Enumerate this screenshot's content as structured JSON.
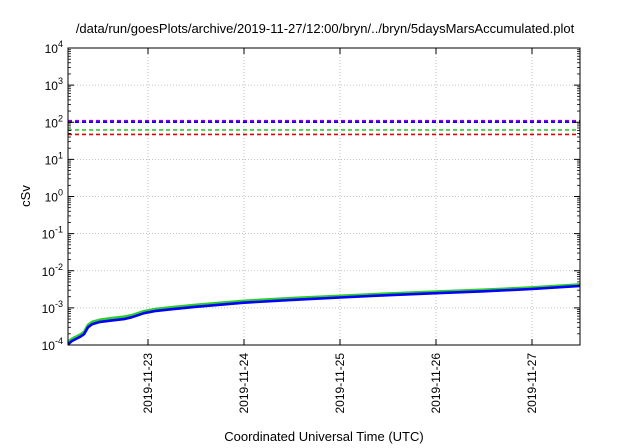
{
  "chart_data": {
    "type": "line",
    "title": "/data/run/goesPlots/archive/2019-11-27/12:00/bryn/../bryn/5daysMarsAccumulated.plot",
    "xlabel": "Coordinated Universal Time (UTC)",
    "ylabel": "cSv",
    "scale_y": "log",
    "grid": true,
    "legend": "none",
    "xlim": [
      "2019-11-22 04:00",
      "2019-11-27 12:00"
    ],
    "ylim": [
      0.0001,
      10000
    ],
    "x_ticks": [
      "2019-11-23",
      "2019-11-24",
      "2019-11-25",
      "2019-11-26",
      "2019-11-27"
    ],
    "y_ticks": [
      {
        "base": "10",
        "exp": "-4"
      },
      {
        "base": "10",
        "exp": "-3"
      },
      {
        "base": "10",
        "exp": "-2"
      },
      {
        "base": "10",
        "exp": "-1"
      },
      {
        "base": "10",
        "exp": "0"
      },
      {
        "base": "10",
        "exp": "1"
      },
      {
        "base": "10",
        "exp": "2"
      },
      {
        "base": "10",
        "exp": "3"
      },
      {
        "base": "10",
        "exp": "4"
      }
    ],
    "reference_lines": [
      {
        "value": 110,
        "color": "#9400d3"
      },
      {
        "value": 100,
        "color": "#0000ff"
      },
      {
        "value": 62,
        "color": "#2ecc2e"
      },
      {
        "value": 47,
        "color": "#e00000"
      }
    ],
    "series": [
      {
        "color": "#2ecc2e",
        "x": [
          "2019-11-22 04:00",
          "2019-11-22 05:00",
          "2019-11-22 07:00",
          "2019-11-22 08:00",
          "2019-11-22 09:00",
          "2019-11-22 10:00",
          "2019-11-22 12:00",
          "2019-11-22 15:00",
          "2019-11-22 18:00",
          "2019-11-22 20:00",
          "2019-11-22 23:00",
          "2019-11-23 02:00",
          "2019-11-23 06:00",
          "2019-11-23 12:00",
          "2019-11-24 00:00",
          "2019-11-24 12:00",
          "2019-11-25 00:00",
          "2019-11-25 12:00",
          "2019-11-26 00:00",
          "2019-11-26 12:00",
          "2019-11-27 00:00",
          "2019-11-27 12:00"
        ],
        "values": [
          0.000122,
          0.000148,
          0.00019,
          0.000225,
          0.00035,
          0.00042,
          0.00048,
          0.00053,
          0.00058,
          0.00064,
          0.00082,
          0.00094,
          0.00104,
          0.00121,
          0.00155,
          0.00183,
          0.00212,
          0.00244,
          0.00275,
          0.00308,
          0.00355,
          0.0043
        ]
      },
      {
        "color": "#0000ff",
        "x": [
          "2019-11-22 04:00",
          "2019-11-22 05:00",
          "2019-11-22 07:00",
          "2019-11-22 08:00",
          "2019-11-22 09:00",
          "2019-11-22 10:00",
          "2019-11-22 12:00",
          "2019-11-22 15:00",
          "2019-11-22 18:00",
          "2019-11-22 20:00",
          "2019-11-22 23:00",
          "2019-11-23 02:00",
          "2019-11-23 06:00",
          "2019-11-23 12:00",
          "2019-11-24 00:00",
          "2019-11-24 12:00",
          "2019-11-25 00:00",
          "2019-11-25 12:00",
          "2019-11-26 00:00",
          "2019-11-26 12:00",
          "2019-11-27 00:00",
          "2019-11-27 12:00"
        ],
        "values": [
          0.000105,
          0.000128,
          0.000165,
          0.000195,
          0.0003,
          0.00036,
          0.00042,
          0.00046,
          0.0005,
          0.00056,
          0.00072,
          0.00083,
          0.00092,
          0.00107,
          0.00138,
          0.00164,
          0.0019,
          0.00219,
          0.00248,
          0.00279,
          0.00322,
          0.0039
        ]
      }
    ]
  }
}
